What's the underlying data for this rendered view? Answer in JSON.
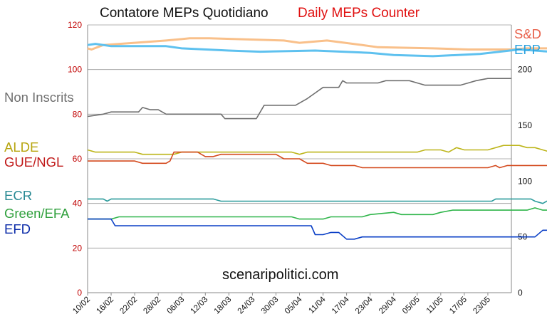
{
  "header": {
    "title_it": "Contatore MEPs Quotidiano",
    "title_en": "Daily MEPs Counter"
  },
  "watermark": "scenaripolitici.com",
  "chart_data": {
    "type": "line",
    "left_axis": {
      "ylim": [
        0,
        120
      ],
      "ticks": [
        "0",
        "20",
        "40",
        "60",
        "80",
        "100",
        "120"
      ],
      "ticks_color": "#c00000"
    },
    "right_axis": {
      "ylim": [
        0,
        240
      ],
      "ticks": [
        "0",
        "50",
        "100",
        "150",
        "200"
      ]
    },
    "x_tick_labels": [
      "10/02",
      "16/02",
      "22/02",
      "28/02",
      "06/03",
      "12/03",
      "18/03",
      "24/03",
      "30/03",
      "05/04",
      "11/04",
      "17/04",
      "23/04",
      "29/04",
      "05/05",
      "11/05",
      "17/05",
      "23/05"
    ],
    "x_tick_step_days": 6,
    "x_total_days": 108,
    "grid": "horizontal",
    "series": [
      {
        "name": "S&D",
        "axis": "right",
        "color": "#f9c08a",
        "label_color": "#e8604a",
        "points": [
          [
            0,
            219
          ],
          [
            1,
            218
          ],
          [
            4,
            222
          ],
          [
            12,
            224
          ],
          [
            20,
            226
          ],
          [
            26,
            228
          ],
          [
            31,
            228
          ],
          [
            50,
            226
          ],
          [
            54,
            224
          ],
          [
            61,
            226
          ],
          [
            70,
            222
          ],
          [
            74,
            220
          ],
          [
            88,
            219
          ],
          [
            97,
            218
          ],
          [
            104,
            218
          ],
          [
            108,
            218
          ],
          [
            112,
            219
          ],
          [
            118,
            219
          ],
          [
            122,
            216
          ],
          [
            127,
            217
          ],
          [
            132,
            217
          ]
        ]
      },
      {
        "name": "EPP",
        "axis": "right",
        "color": "#5ec1ef",
        "label_color": "#2aa2df",
        "points": [
          [
            0,
            222
          ],
          [
            2,
            223
          ],
          [
            6,
            221
          ],
          [
            20,
            221
          ],
          [
            24,
            219
          ],
          [
            36,
            217
          ],
          [
            44,
            216
          ],
          [
            58,
            217
          ],
          [
            72,
            215
          ],
          [
            78,
            213
          ],
          [
            88,
            212
          ],
          [
            100,
            214
          ],
          [
            110,
            218
          ],
          [
            122,
            215
          ],
          [
            127,
            214
          ],
          [
            131,
            216
          ],
          [
            133,
            214
          ]
        ]
      },
      {
        "name": "Non Inscrits",
        "axis": "left",
        "color": "#6f6f6f",
        "label_color": "#6f6f6f",
        "points": [
          [
            0,
            79
          ],
          [
            4,
            80
          ],
          [
            6,
            81
          ],
          [
            13,
            81
          ],
          [
            14,
            83
          ],
          [
            16,
            82
          ],
          [
            18,
            82
          ],
          [
            20,
            80
          ],
          [
            34,
            80
          ],
          [
            35,
            78
          ],
          [
            43,
            78
          ],
          [
            45,
            84
          ],
          [
            52,
            84
          ],
          [
            53,
            84
          ],
          [
            56,
            87
          ],
          [
            60,
            92
          ],
          [
            64,
            92
          ],
          [
            65,
            95
          ],
          [
            66,
            94
          ],
          [
            74,
            94
          ],
          [
            76,
            95
          ],
          [
            82,
            95
          ],
          [
            84,
            94
          ],
          [
            86,
            93
          ],
          [
            95,
            93
          ],
          [
            97,
            94
          ],
          [
            99,
            95
          ],
          [
            102,
            96
          ],
          [
            108,
            96
          ]
        ]
      },
      {
        "name": "ALDE",
        "axis": "left",
        "color": "#bdb51a",
        "label_color": "#b7a510",
        "points": [
          [
            0,
            64
          ],
          [
            2,
            63
          ],
          [
            12,
            63
          ],
          [
            14,
            62
          ],
          [
            22,
            62
          ],
          [
            24,
            63
          ],
          [
            52,
            63
          ],
          [
            54,
            62
          ],
          [
            56,
            63
          ],
          [
            84,
            63
          ],
          [
            86,
            64
          ],
          [
            90,
            64
          ],
          [
            92,
            63
          ],
          [
            94,
            65
          ],
          [
            96,
            64
          ],
          [
            102,
            64
          ],
          [
            106,
            66
          ],
          [
            110,
            66
          ],
          [
            112,
            65
          ],
          [
            114,
            65
          ],
          [
            116,
            64
          ],
          [
            118,
            63
          ],
          [
            120,
            63
          ]
        ]
      },
      {
        "name": "GUE/NGL",
        "axis": "left",
        "color": "#d44a1e",
        "label_color": "#c01818",
        "points": [
          [
            0,
            59
          ],
          [
            12,
            59
          ],
          [
            14,
            58
          ],
          [
            20,
            58
          ],
          [
            21,
            59
          ],
          [
            22,
            63
          ],
          [
            24,
            63
          ],
          [
            28,
            63
          ],
          [
            30,
            61
          ],
          [
            32,
            61
          ],
          [
            34,
            62
          ],
          [
            48,
            62
          ],
          [
            50,
            60
          ],
          [
            54,
            60
          ],
          [
            56,
            58
          ],
          [
            60,
            58
          ],
          [
            62,
            57
          ],
          [
            68,
            57
          ],
          [
            70,
            56
          ],
          [
            102,
            56
          ],
          [
            104,
            57
          ],
          [
            105,
            56
          ],
          [
            107,
            57
          ],
          [
            118,
            57
          ],
          [
            120,
            53
          ],
          [
            126,
            53
          ]
        ]
      },
      {
        "name": "ECR",
        "axis": "left",
        "color": "#2c9c9c",
        "label_color": "#2a8a94",
        "points": [
          [
            0,
            42
          ],
          [
            4,
            42
          ],
          [
            5,
            41
          ],
          [
            6,
            42
          ],
          [
            32,
            42
          ],
          [
            34,
            41
          ],
          [
            103,
            41
          ],
          [
            104,
            42
          ],
          [
            113,
            42
          ],
          [
            114,
            41
          ],
          [
            116,
            40
          ],
          [
            117,
            41
          ],
          [
            118,
            41
          ]
        ]
      },
      {
        "name": "Green/EFA",
        "axis": "left",
        "color": "#2fb54a",
        "label_color": "#2fa03c",
        "points": [
          [
            0,
            33
          ],
          [
            6,
            33
          ],
          [
            8,
            34
          ],
          [
            52,
            34
          ],
          [
            54,
            33
          ],
          [
            60,
            33
          ],
          [
            62,
            34
          ],
          [
            70,
            34
          ],
          [
            72,
            35
          ],
          [
            78,
            36
          ],
          [
            80,
            35
          ],
          [
            88,
            35
          ],
          [
            90,
            36
          ],
          [
            93,
            37
          ],
          [
            104,
            37
          ],
          [
            108,
            37
          ],
          [
            112,
            37
          ],
          [
            114,
            38
          ],
          [
            116,
            37
          ],
          [
            118,
            37
          ]
        ]
      },
      {
        "name": "EFD",
        "axis": "left",
        "color": "#0a3fc6",
        "label_color": "#0a2aa8",
        "points": [
          [
            0,
            33
          ],
          [
            6,
            33
          ],
          [
            7,
            30
          ],
          [
            24,
            30
          ],
          [
            48,
            30
          ],
          [
            50,
            30
          ],
          [
            57,
            30
          ],
          [
            58,
            26
          ],
          [
            60,
            26
          ],
          [
            62,
            27
          ],
          [
            64,
            27
          ],
          [
            66,
            24
          ],
          [
            68,
            24
          ],
          [
            70,
            25
          ],
          [
            82,
            25
          ],
          [
            94,
            25
          ],
          [
            114,
            25
          ],
          [
            116,
            28
          ],
          [
            118,
            28
          ]
        ]
      }
    ]
  }
}
